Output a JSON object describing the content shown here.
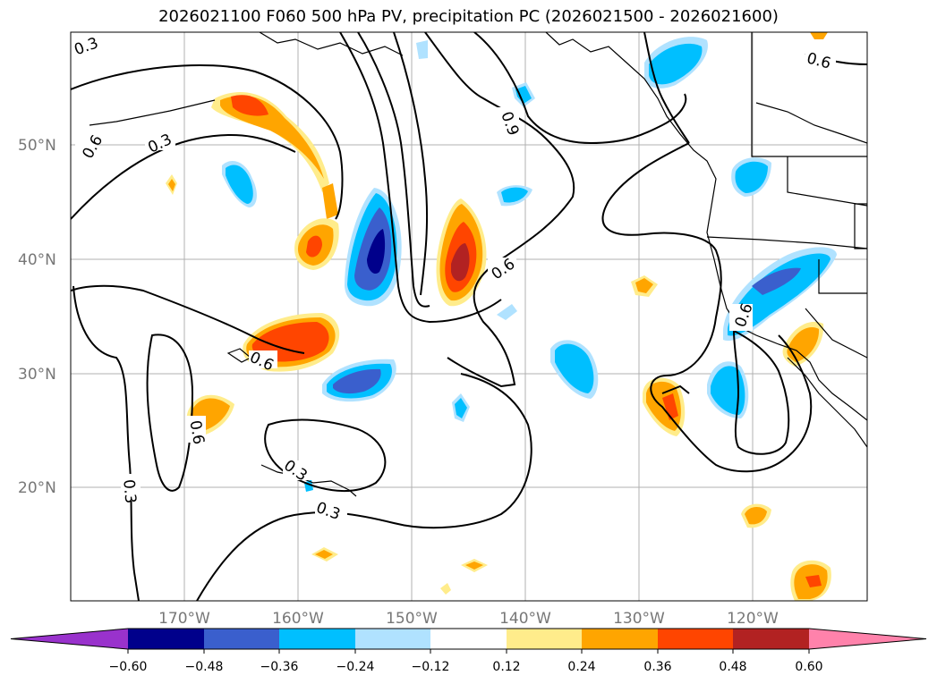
{
  "title": "2026021100 F060 500 hPa PV, precipitation PC (2026021500 - 2026021600)",
  "lat_labels": [
    "50°N",
    "40°N",
    "30°N",
    "20°N"
  ],
  "lon_labels": [
    "170°W",
    "160°W",
    "150°W",
    "140°W",
    "130°W",
    "120°W"
  ],
  "contour_labels": [
    "0.3",
    "0.6",
    "0.3",
    "0.9",
    "0.6",
    "0.6",
    "0.6",
    "0.6",
    "0.6",
    "0.3",
    "0.3",
    "0.3"
  ],
  "colorbar": {
    "ticks": [
      "−0.60",
      "−0.48",
      "−0.36",
      "−0.24",
      "−0.12",
      "0.12",
      "0.24",
      "0.36",
      "0.48",
      "0.60"
    ],
    "colors": [
      "#9932cc",
      "#00008b",
      "#3a5fcd",
      "#00bfff",
      "#b0e2ff",
      "#ffffff",
      "#ffec8b",
      "#ffa500",
      "#ff4500",
      "#b22222",
      "#ff82ab"
    ]
  },
  "colors": {
    "contour": "#000000",
    "coastline": "#000000",
    "grid": "#b0b0b0"
  }
}
